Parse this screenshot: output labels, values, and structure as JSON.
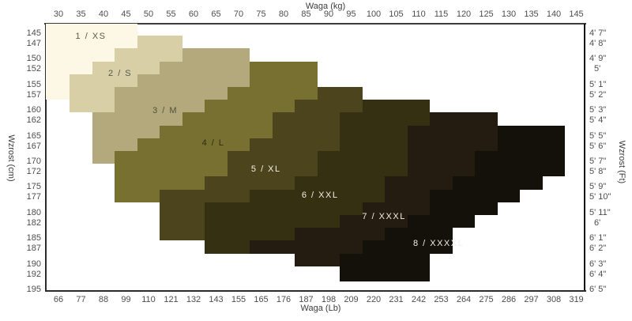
{
  "background": "#ffffff",
  "axes": {
    "top": {
      "title": "Waga  (kg)"
    },
    "bottom": {
      "title": "Waga  (Lb)"
    },
    "left": {
      "title": "Wzrost  (cm)"
    },
    "right": {
      "title": "Wzrost  (Ft)"
    }
  },
  "chart_data": {
    "type": "heatmap",
    "title": "",
    "description": "Stepped clothing-size regions over weight (x) and height (y)",
    "x_axis_top": {
      "label": "Waga  (kg)",
      "ticks": [
        30,
        35,
        40,
        45,
        50,
        55,
        60,
        65,
        70,
        75,
        80,
        85,
        90,
        95,
        100,
        105,
        110,
        115,
        120,
        125,
        130,
        135,
        140,
        145
      ],
      "range": [
        27.2,
        147.0
      ]
    },
    "x_axis_bottom": {
      "label": "Waga  (Lb)",
      "ticks": [
        66,
        77,
        88,
        99,
        110,
        121,
        132,
        143,
        155,
        165,
        176,
        187,
        198,
        209,
        220,
        231,
        242,
        253,
        264,
        275,
        286,
        297,
        308,
        319
      ]
    },
    "y_axis_left": {
      "label": "Wzrost  (cm)",
      "ticks": [
        145,
        147,
        150,
        152,
        155,
        157,
        160,
        162,
        165,
        167,
        170,
        172,
        175,
        177,
        180,
        182,
        185,
        187,
        190,
        192,
        195
      ],
      "range": [
        143.1,
        195.5
      ]
    },
    "y_axis_right": {
      "label": "Wzrost  (Ft)",
      "ticks": [
        "4' 7\"",
        "4' 8\"",
        "4' 9\"",
        "5'",
        "5' 1\"",
        "5' 2\"",
        "5' 3\"",
        "5' 4\"",
        "5' 5\"",
        "5' 6\"",
        "5' 7\"",
        "5' 8\"",
        "5' 9\"",
        "5' 10\"",
        "5' 11\"",
        "6'",
        "6' 1\"",
        "6' 2\"",
        "6' 3\"",
        "6' 4\"",
        "6' 5\""
      ]
    },
    "grid": false,
    "legend": false,
    "bands": [
      {
        "id": 1,
        "label": "1  /  XS",
        "color": "#fcf8e5",
        "text_color": "#58584e",
        "label_at": {
          "kg": 37.2,
          "cm": 145.6
        },
        "rects": [
          [
            143.1,
            148,
            27.2,
            47.5
          ],
          [
            148,
            150.5,
            27.2,
            42.5
          ],
          [
            150.5,
            153,
            27.2,
            37.5
          ],
          [
            153,
            158,
            27.2,
            32.5
          ]
        ]
      },
      {
        "id": 2,
        "label": "2  /  S",
        "color": "#d8cfa6",
        "text_color": "#58584e",
        "label_at": {
          "kg": 43.7,
          "cm": 152.9
        },
        "rects": [
          [
            145.5,
            148,
            47.5,
            57.5
          ],
          [
            148,
            150.5,
            42.5,
            57.5
          ],
          [
            150.5,
            153,
            37.5,
            52.5
          ],
          [
            153,
            155.5,
            32.5,
            47.5
          ],
          [
            155.5,
            160.5,
            32.5,
            42.5
          ]
        ]
      },
      {
        "id": 3,
        "label": "3  /  M",
        "color": "#b3a97c",
        "text_color": "#50503f",
        "label_at": {
          "kg": 53.7,
          "cm": 160.1
        },
        "rects": [
          [
            148,
            150.5,
            57.5,
            72.5
          ],
          [
            150.5,
            153,
            52.5,
            72.5
          ],
          [
            153,
            155.5,
            47.5,
            72.5
          ],
          [
            155.5,
            158,
            42.5,
            67.5
          ],
          [
            158,
            160.5,
            42.5,
            62.5
          ],
          [
            160.5,
            163,
            37.5,
            57.5
          ],
          [
            163,
            165.5,
            37.5,
            52.5
          ],
          [
            165.5,
            168,
            37.5,
            47.5
          ],
          [
            168,
            170.5,
            37.5,
            42.5
          ]
        ]
      },
      {
        "id": 4,
        "label": "4  /  L",
        "color": "#787031",
        "text_color": "#2f2c12",
        "label_at": {
          "kg": 64.4,
          "cm": 166.5
        },
        "rects": [
          [
            150.5,
            155.5,
            72.5,
            87.5
          ],
          [
            155.5,
            158,
            67.5,
            87.5
          ],
          [
            158,
            160.5,
            62.5,
            82.5
          ],
          [
            160.5,
            163,
            57.5,
            77.5
          ],
          [
            163,
            165.5,
            52.5,
            77.5
          ],
          [
            165.5,
            168,
            47.5,
            72.5
          ],
          [
            168,
            173,
            42.5,
            67.5
          ],
          [
            173,
            175.5,
            42.5,
            62.5
          ],
          [
            175.5,
            178,
            42.5,
            52.5
          ]
        ]
      },
      {
        "id": 5,
        "label": "5  /  XL",
        "color": "#4c441d",
        "text_color": "#f2efe6",
        "label_at": {
          "kg": 76.1,
          "cm": 171.5
        },
        "rects": [
          [
            155.5,
            158,
            87.5,
            97.5
          ],
          [
            158,
            160.5,
            82.5,
            97.5
          ],
          [
            160.5,
            165.5,
            77.5,
            92.5
          ],
          [
            165.5,
            168,
            72.5,
            92.5
          ],
          [
            168,
            173,
            67.5,
            87.5
          ],
          [
            173,
            175.5,
            62.5,
            82.5
          ],
          [
            175.5,
            178,
            52.5,
            72.5
          ],
          [
            178,
            185.5,
            52.5,
            62.5
          ]
        ]
      },
      {
        "id": 6,
        "label": "6  /  XXL",
        "color": "#363013",
        "text_color": "#f2efe6",
        "label_at": {
          "kg": 88.1,
          "cm": 176.6
        },
        "rects": [
          [
            158,
            160.5,
            97.5,
            112.5
          ],
          [
            160.5,
            163,
            92.5,
            112.5
          ],
          [
            163,
            168,
            92.5,
            107.5
          ],
          [
            168,
            173,
            87.5,
            107.5
          ],
          [
            173,
            175.5,
            82.5,
            102.5
          ],
          [
            175.5,
            178,
            72.5,
            102.5
          ],
          [
            178,
            180.5,
            62.5,
            97.5
          ],
          [
            180.5,
            183,
            62.5,
            92.5
          ],
          [
            183,
            185.5,
            62.5,
            82.5
          ],
          [
            185.5,
            188,
            62.5,
            72.5
          ]
        ]
      },
      {
        "id": 7,
        "label": "7  /  XXXL",
        "color": "#241c10",
        "text_color": "#f2efe6",
        "label_at": {
          "kg": 102.3,
          "cm": 180.8
        },
        "rects": [
          [
            160.5,
            163,
            112.5,
            127.5
          ],
          [
            163,
            168,
            107.5,
            127.5
          ],
          [
            168,
            173,
            107.5,
            122.5
          ],
          [
            173,
            175.5,
            102.5,
            117.5
          ],
          [
            175.5,
            178,
            102.5,
            112.5
          ],
          [
            178,
            180.5,
            97.5,
            112.5
          ],
          [
            180.5,
            183,
            92.5,
            107.5
          ],
          [
            183,
            185.5,
            82.5,
            102.5
          ],
          [
            185.5,
            188,
            72.5,
            97.5
          ],
          [
            188,
            190.5,
            82.5,
            92.5
          ]
        ]
      },
      {
        "id": 8,
        "label": "8  /  XXXXL",
        "color": "#14100a",
        "text_color": "#f2efe6",
        "label_at": {
          "kg": 114.4,
          "cm": 186.0
        },
        "rects": [
          [
            163,
            168,
            127.5,
            142.5
          ],
          [
            168,
            173,
            122.5,
            142.5
          ],
          [
            173,
            175.5,
            117.5,
            137.5
          ],
          [
            175.5,
            178,
            112.5,
            132.5
          ],
          [
            178,
            180.5,
            112.5,
            127.5
          ],
          [
            180.5,
            183,
            107.5,
            122.5
          ],
          [
            183,
            185.5,
            102.5,
            117.5
          ],
          [
            185.5,
            188,
            97.5,
            117.5
          ],
          [
            188,
            193.5,
            92.5,
            112.5
          ]
        ]
      }
    ],
    "axis_line_color": "#2b2b2b",
    "tick_text_color": "#4d4d4d"
  }
}
